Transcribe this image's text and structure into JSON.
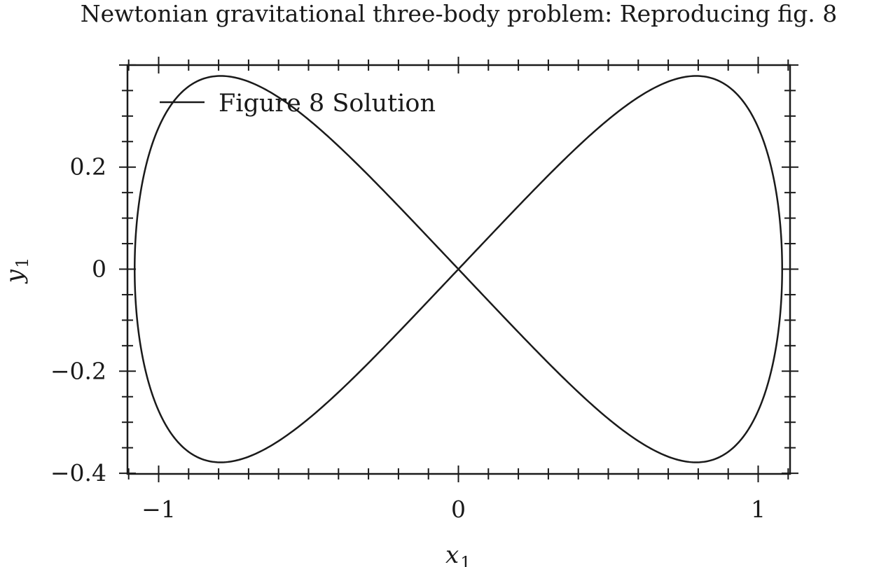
{
  "chart_data": {
    "type": "line",
    "title": "Newtonian gravitational three-body problem: Reproducing fig. 8",
    "xlabel": "x",
    "xlabel_sub": "1",
    "ylabel": "y",
    "ylabel_sub": "1",
    "xlim": [
      -1.1,
      1.1
    ],
    "ylim": [
      -0.4,
      0.4
    ],
    "xticks": [
      -1,
      0,
      1
    ],
    "xtick_labels": [
      "−1",
      "0",
      "1"
    ],
    "yticks": [
      -0.4,
      -0.2,
      0,
      0.2
    ],
    "ytick_labels": [
      "−0.4",
      "−0.2",
      "0",
      "0.2"
    ],
    "grid": false,
    "legend_position": "top-left",
    "series": [
      {
        "name": "Figure 8 Solution",
        "color": "#1a1a1a",
        "shape": "figure-eight lemniscate",
        "x_extent": [
          -1.08,
          1.08
        ],
        "y_extent": [
          -0.36,
          0.36
        ],
        "x_at_y_extrema": 0.67,
        "crossing_point": [
          0,
          0
        ]
      }
    ]
  }
}
